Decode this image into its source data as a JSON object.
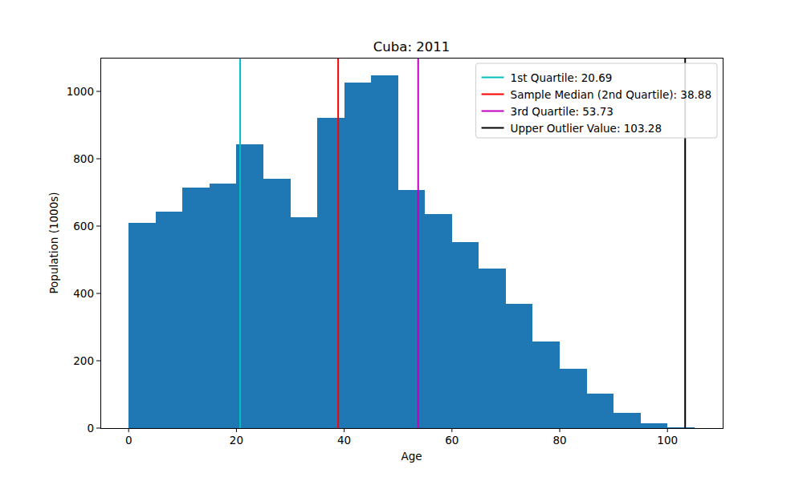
{
  "chart_data": {
    "type": "histogram",
    "title": "Cuba: 2011",
    "x_label": "Age",
    "y_label": "Population (1000s)",
    "bins": [
      0,
      5,
      10,
      15,
      20,
      25,
      30,
      35,
      40,
      45,
      50,
      55,
      60,
      65,
      70,
      75,
      80,
      85,
      90,
      95,
      100,
      105
    ],
    "values": [
      610,
      643,
      715,
      727,
      843,
      741,
      627,
      922,
      1027,
      1048,
      707,
      636,
      553,
      474,
      370,
      258,
      177,
      103,
      46,
      14,
      2
    ],
    "color": "#1f77b4",
    "xlim": [
      -5.25,
      110.25
    ],
    "xticks": [
      0,
      20,
      40,
      60,
      80,
      100
    ],
    "ylim": [
      0,
      1100
    ],
    "yticks": [
      0,
      200,
      400,
      600,
      800,
      1000
    ],
    "vlines": [
      {
        "name": "1st Quartile: 20.69",
        "value": 20.69,
        "color": "#00bfbf"
      },
      {
        "name": "Sample Median (2nd Quartile): 38.88",
        "value": 38.88,
        "color": "#ff0000"
      },
      {
        "name": "3rd Quartile: 53.73",
        "value": 53.73,
        "color": "#bf00bf"
      },
      {
        "name": "Upper Outlier Value: 103.28",
        "value": 103.28,
        "color": "#000000"
      }
    ],
    "legend": "upper right",
    "grid": false
  }
}
